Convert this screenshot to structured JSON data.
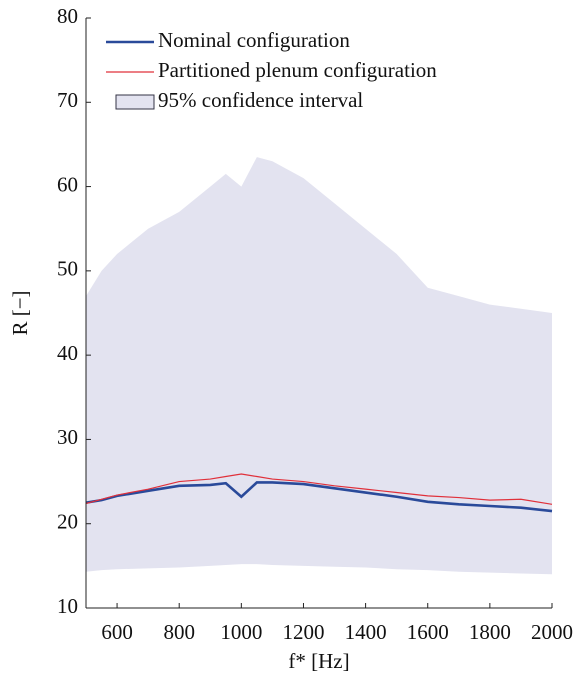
{
  "chart_data": {
    "type": "line",
    "xlabel": "f* [Hz]",
    "ylabel": "R [−]",
    "x": [
      500,
      550,
      600,
      700,
      800,
      900,
      950,
      1000,
      1050,
      1100,
      1200,
      1300,
      1400,
      1500,
      1600,
      1700,
      1800,
      1900,
      2000
    ],
    "series": [
      {
        "name": "Nominal configuration",
        "color": "#2a4a9a",
        "values": [
          22.5,
          22.8,
          23.3,
          23.9,
          24.5,
          24.6,
          24.8,
          23.2,
          24.9,
          24.9,
          24.7,
          24.2,
          23.7,
          23.2,
          22.6,
          22.3,
          22.1,
          21.9,
          21.5
        ]
      },
      {
        "name": "Partitioned plenum configuration",
        "color": "#e0303a",
        "values": [
          22.4,
          22.9,
          23.4,
          24.1,
          25.0,
          25.3,
          25.6,
          25.9,
          25.6,
          25.3,
          25.0,
          24.5,
          24.1,
          23.7,
          23.3,
          23.1,
          22.8,
          22.9,
          22.3
        ]
      }
    ],
    "band": {
      "name": "95% confidence interval",
      "color": "#e3e3f0",
      "upper": [
        47,
        50,
        52,
        55,
        57,
        60,
        61.5,
        60,
        63.5,
        63,
        61,
        58,
        55,
        52,
        48,
        47,
        46,
        45.5,
        45
      ],
      "lower": [
        14.3,
        14.5,
        14.6,
        14.7,
        14.8,
        15,
        15.1,
        15.2,
        15.2,
        15.1,
        15,
        14.9,
        14.8,
        14.6,
        14.5,
        14.3,
        14.2,
        14.1,
        14
      ]
    },
    "xlim": [
      500,
      2000
    ],
    "xticks": [
      600,
      800,
      1000,
      1200,
      1400,
      1600,
      1800,
      2000
    ],
    "ylim": [
      10,
      80
    ],
    "yticks": [
      10,
      20,
      30,
      40,
      50,
      60,
      70,
      80
    ],
    "legend": "upper left"
  }
}
